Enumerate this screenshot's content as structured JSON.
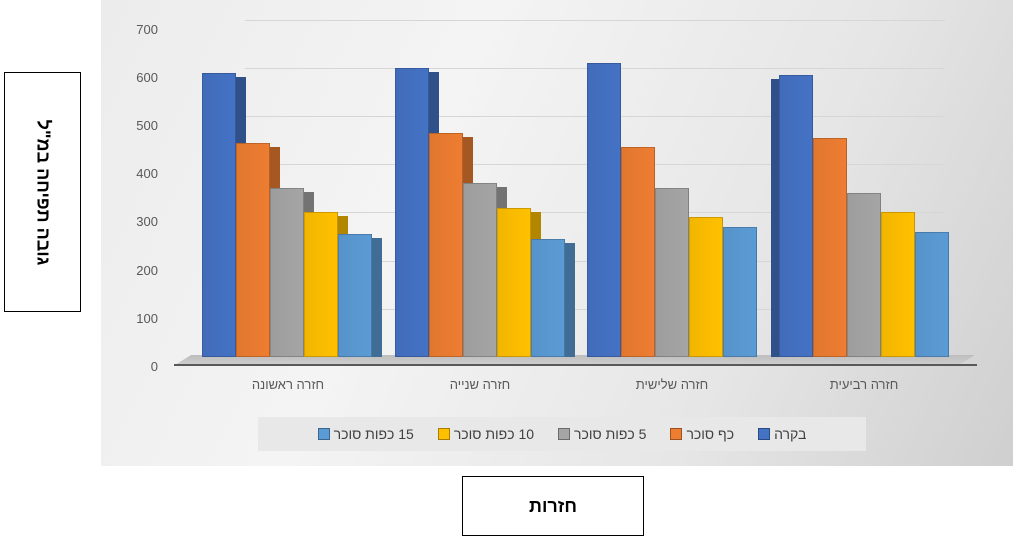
{
  "chart_data": {
    "type": "bar",
    "title": "",
    "xlabel": "חזרות",
    "ylabel": "גובה תפיחה במ\"ל",
    "ylim": [
      0,
      700
    ],
    "yticks": [
      0,
      100,
      200,
      300,
      400,
      500,
      600,
      700
    ],
    "grid": true,
    "legend_position": "bottom",
    "style": "3d-clustered-column",
    "categories": [
      "חזרה ראשונה",
      "חזרה שנייה",
      "חזרה שלישית",
      "חזרה רביעית"
    ],
    "series": [
      {
        "name": "בקרה",
        "color": "#4472c4",
        "values": [
          590,
          600,
          610,
          585
        ]
      },
      {
        "name": "כף סוכר",
        "color": "#ed7d31",
        "values": [
          445,
          465,
          435,
          455
        ]
      },
      {
        "name": "5 כפות סוכר",
        "color": "#a5a5a5",
        "values": [
          350,
          360,
          350,
          340
        ]
      },
      {
        "name": "10 כפות סוכר",
        "color": "#ffc000",
        "values": [
          300,
          310,
          290,
          300
        ]
      },
      {
        "name": "15 כפות סוכר",
        "color": "#5b9bd5",
        "values": [
          255,
          245,
          270,
          260
        ]
      }
    ]
  },
  "axis_titles": {
    "y": "גובה תפיחה במ\"ל",
    "x": "חזרות"
  },
  "yticks_labels": [
    "700",
    "600",
    "500",
    "400",
    "300",
    "200",
    "100",
    "0"
  ],
  "categories": [
    "חזרה ראשונה",
    "חזרה שנייה",
    "חזרה שלישית",
    "חזרה רביעית"
  ],
  "legend": [
    {
      "label": "בקרה",
      "color": "#4472c4"
    },
    {
      "label": "כף סוכר",
      "color": "#ed7d31"
    },
    {
      "label": "5 כפות סוכר",
      "color": "#a5a5a5"
    },
    {
      "label": "10 כפות סוכר",
      "color": "#ffc000"
    },
    {
      "label": "15 כפות סוכר",
      "color": "#5b9bd5"
    }
  ]
}
